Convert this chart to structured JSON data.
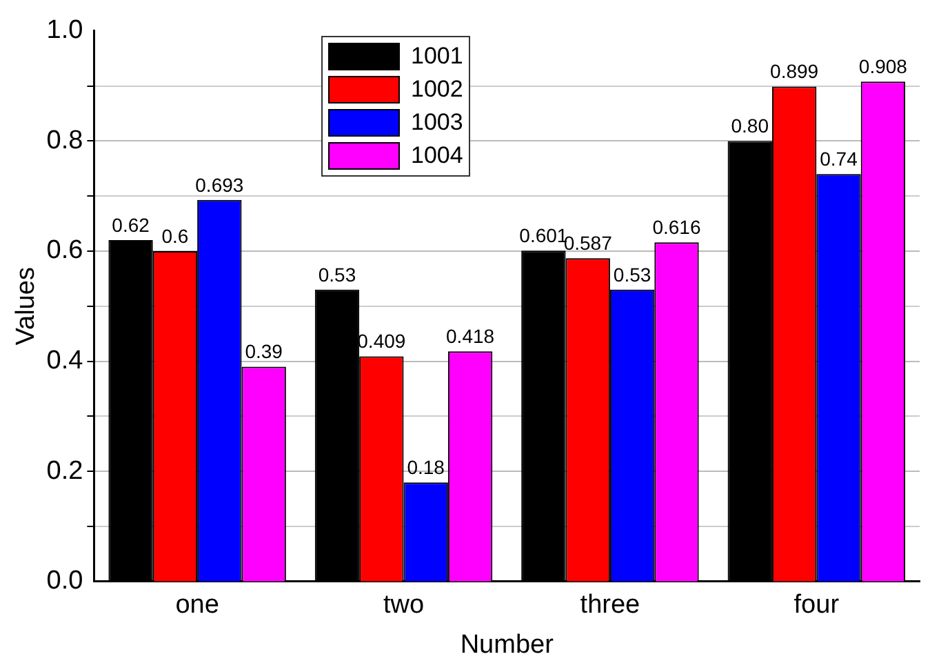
{
  "chart_data": {
    "type": "bar",
    "xlabel": "Number",
    "ylabel": "Values",
    "categories": [
      "one",
      "two",
      "three",
      "four"
    ],
    "series": [
      {
        "name": "1001",
        "color": "#000000",
        "values": [
          0.62,
          0.53,
          0.601,
          0.8
        ],
        "value_labels": [
          "0.62",
          "0.53",
          "0.601",
          "0.80"
        ]
      },
      {
        "name": "1002",
        "color": "#ff0000",
        "values": [
          0.6,
          0.409,
          0.587,
          0.899
        ],
        "value_labels": [
          "0.6",
          "0.409",
          "0.587",
          "0.899"
        ]
      },
      {
        "name": "1003",
        "color": "#0000ff",
        "values": [
          0.693,
          0.18,
          0.53,
          0.74
        ],
        "value_labels": [
          "0.693",
          "0.18",
          "0.53",
          "0.74"
        ]
      },
      {
        "name": "1004",
        "color": "#ff00ff",
        "values": [
          0.39,
          0.418,
          0.616,
          0.908
        ],
        "value_labels": [
          "0.39",
          "0.418",
          "0.616",
          "0.908"
        ]
      }
    ],
    "ylim": [
      0,
      1
    ],
    "yticks": [
      "0.0",
      {
        "value": 0.1,
        "label": null
      },
      "0.2",
      {
        "value": 0.3,
        "label": null
      },
      "0.4",
      {
        "value": 0.5,
        "label": null
      },
      "0.6",
      {
        "value": 0.7,
        "label": null
      },
      "0.8",
      {
        "value": 0.9,
        "label": null
      },
      "1.0"
    ],
    "grid": "y",
    "legend": "top"
  }
}
